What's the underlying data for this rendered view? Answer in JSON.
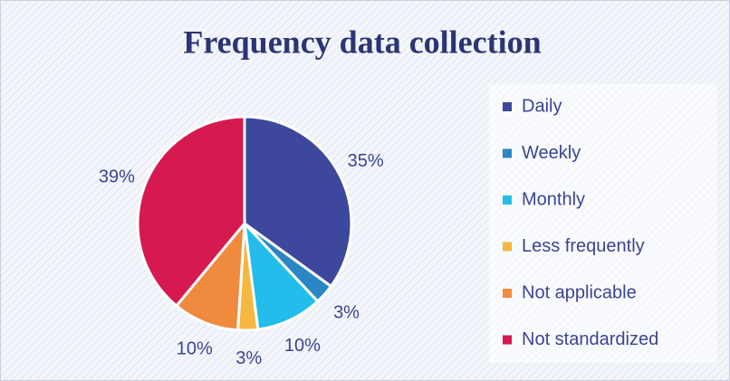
{
  "chart_data": {
    "type": "pie",
    "title": "Frequency data collection",
    "categories": [
      "Daily",
      "Weekly",
      "Monthly",
      "Less frequently",
      "Not applicable",
      "Not standardized"
    ],
    "values": [
      35,
      3,
      10,
      3,
      10,
      39
    ],
    "value_labels": [
      "35%",
      "3%",
      "10%",
      "3%",
      "10%",
      "39%"
    ],
    "colors": [
      "#3d479c",
      "#2a86c4",
      "#22bdea",
      "#f4b740",
      "#ef8a3e",
      "#d61a4f"
    ],
    "legend": "right"
  }
}
